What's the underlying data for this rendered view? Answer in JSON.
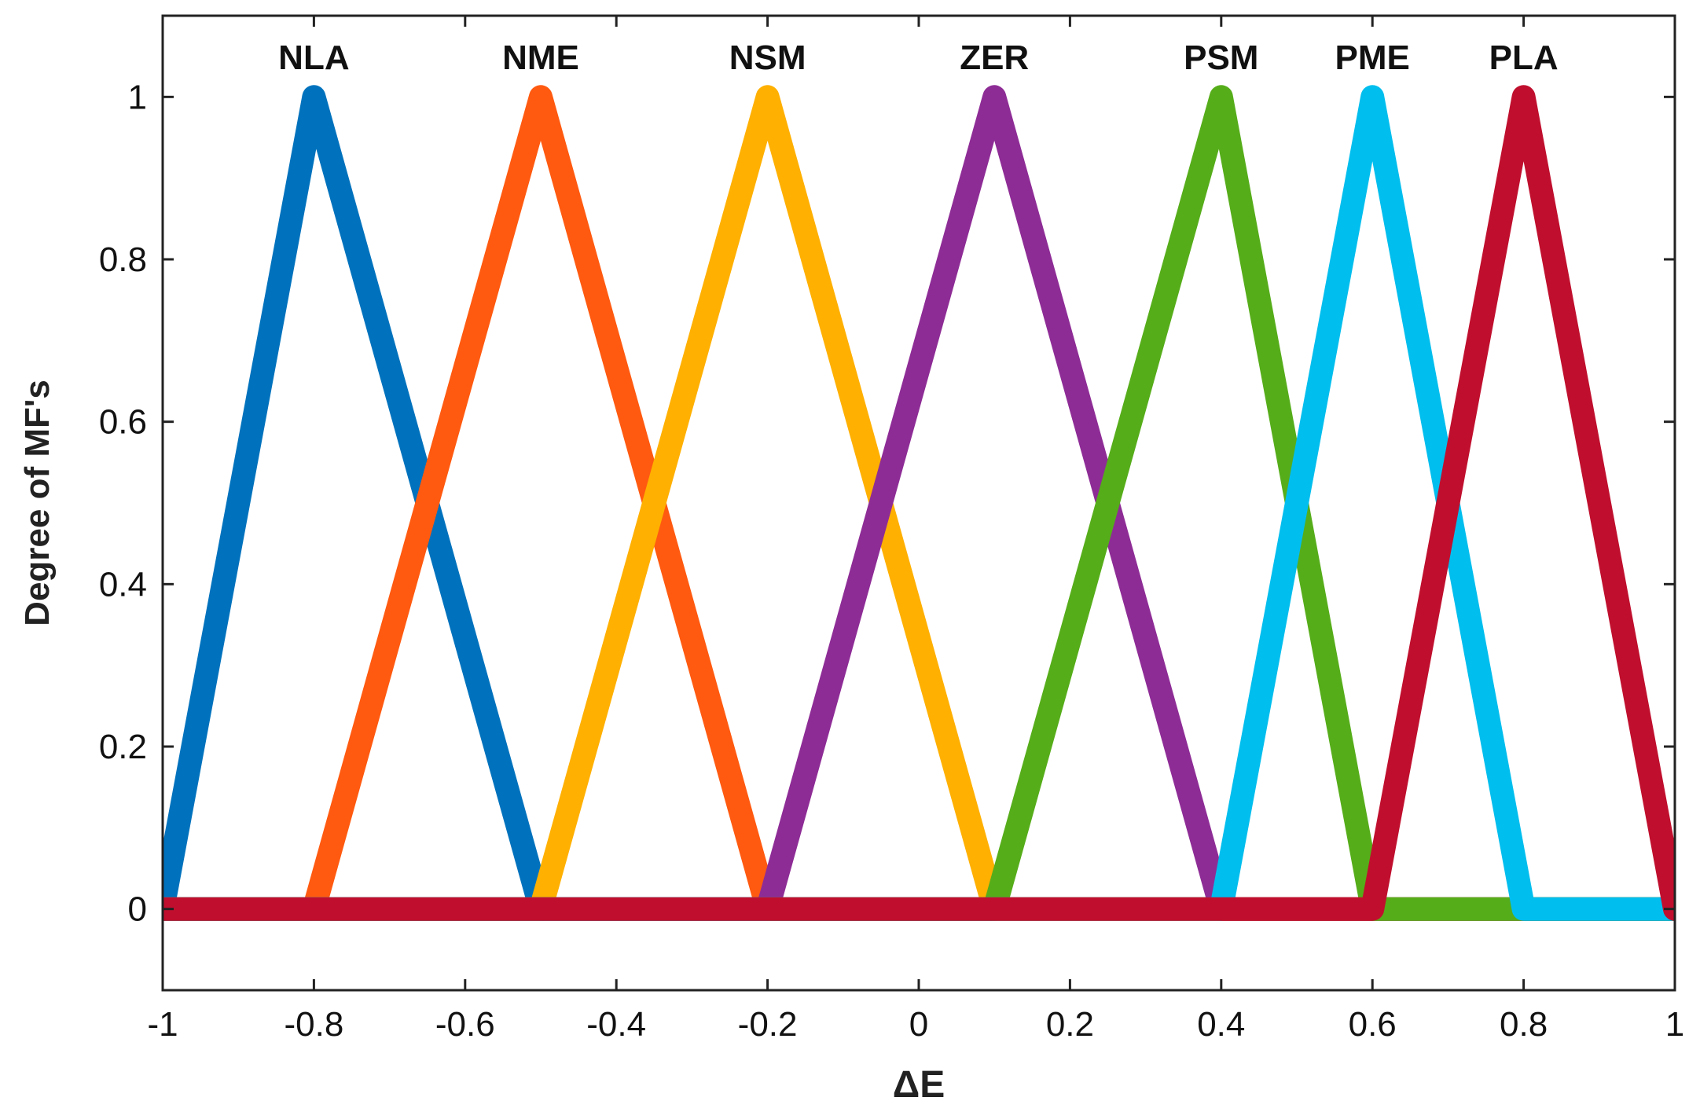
{
  "chart_data": {
    "type": "line",
    "title": "",
    "xlabel": "ΔE",
    "ylabel": "Degree of MF's",
    "xlim": [
      -1,
      1
    ],
    "ylim": [
      -0.1,
      1.1
    ],
    "xticks": [
      -1,
      -0.8,
      -0.6,
      -0.4,
      -0.2,
      0,
      0.2,
      0.4,
      0.6,
      0.8,
      1
    ],
    "xtick_labels": [
      "-1",
      "-0.8",
      "-0.6",
      "-0.4",
      "-0.2",
      "0",
      "0.2",
      "0.4",
      "0.6",
      "0.8",
      "1"
    ],
    "yticks": [
      0,
      0.2,
      0.4,
      0.6,
      0.8,
      1
    ],
    "ytick_labels": [
      "0",
      "0.2",
      "0.4",
      "0.6",
      "0.8",
      "1"
    ],
    "grid": false,
    "series": [
      {
        "name": "NLA",
        "color": "#0072BD",
        "x": [
          -1,
          -0.8,
          -0.5,
          1
        ],
        "y": [
          0,
          1,
          0,
          0
        ]
      },
      {
        "name": "NME",
        "color": "#FF5A10",
        "x": [
          -1,
          -0.8,
          -0.5,
          -0.2,
          1
        ],
        "y": [
          0,
          0,
          1,
          0,
          0
        ]
      },
      {
        "name": "NSM",
        "color": "#FFB000",
        "x": [
          -1,
          -0.5,
          -0.2,
          0.1,
          1
        ],
        "y": [
          0,
          0,
          1,
          0,
          0
        ]
      },
      {
        "name": "ZER",
        "color": "#8E2C96",
        "x": [
          -1,
          -0.2,
          0.1,
          0.4,
          1
        ],
        "y": [
          0,
          0,
          1,
          0,
          0
        ]
      },
      {
        "name": "PSM",
        "color": "#56AD1A",
        "x": [
          -1,
          0.1,
          0.4,
          0.6,
          1
        ],
        "y": [
          0,
          0,
          1,
          0,
          0
        ]
      },
      {
        "name": "PME",
        "color": "#00BEEE",
        "x": [
          -1,
          0.4,
          0.6,
          0.8,
          1
        ],
        "y": [
          0,
          0,
          1,
          0,
          0
        ]
      },
      {
        "name": "PLA",
        "color": "#C00F2E",
        "x": [
          -1,
          0.6,
          0.8,
          1
        ],
        "y": [
          0,
          0,
          1,
          0
        ]
      }
    ]
  }
}
